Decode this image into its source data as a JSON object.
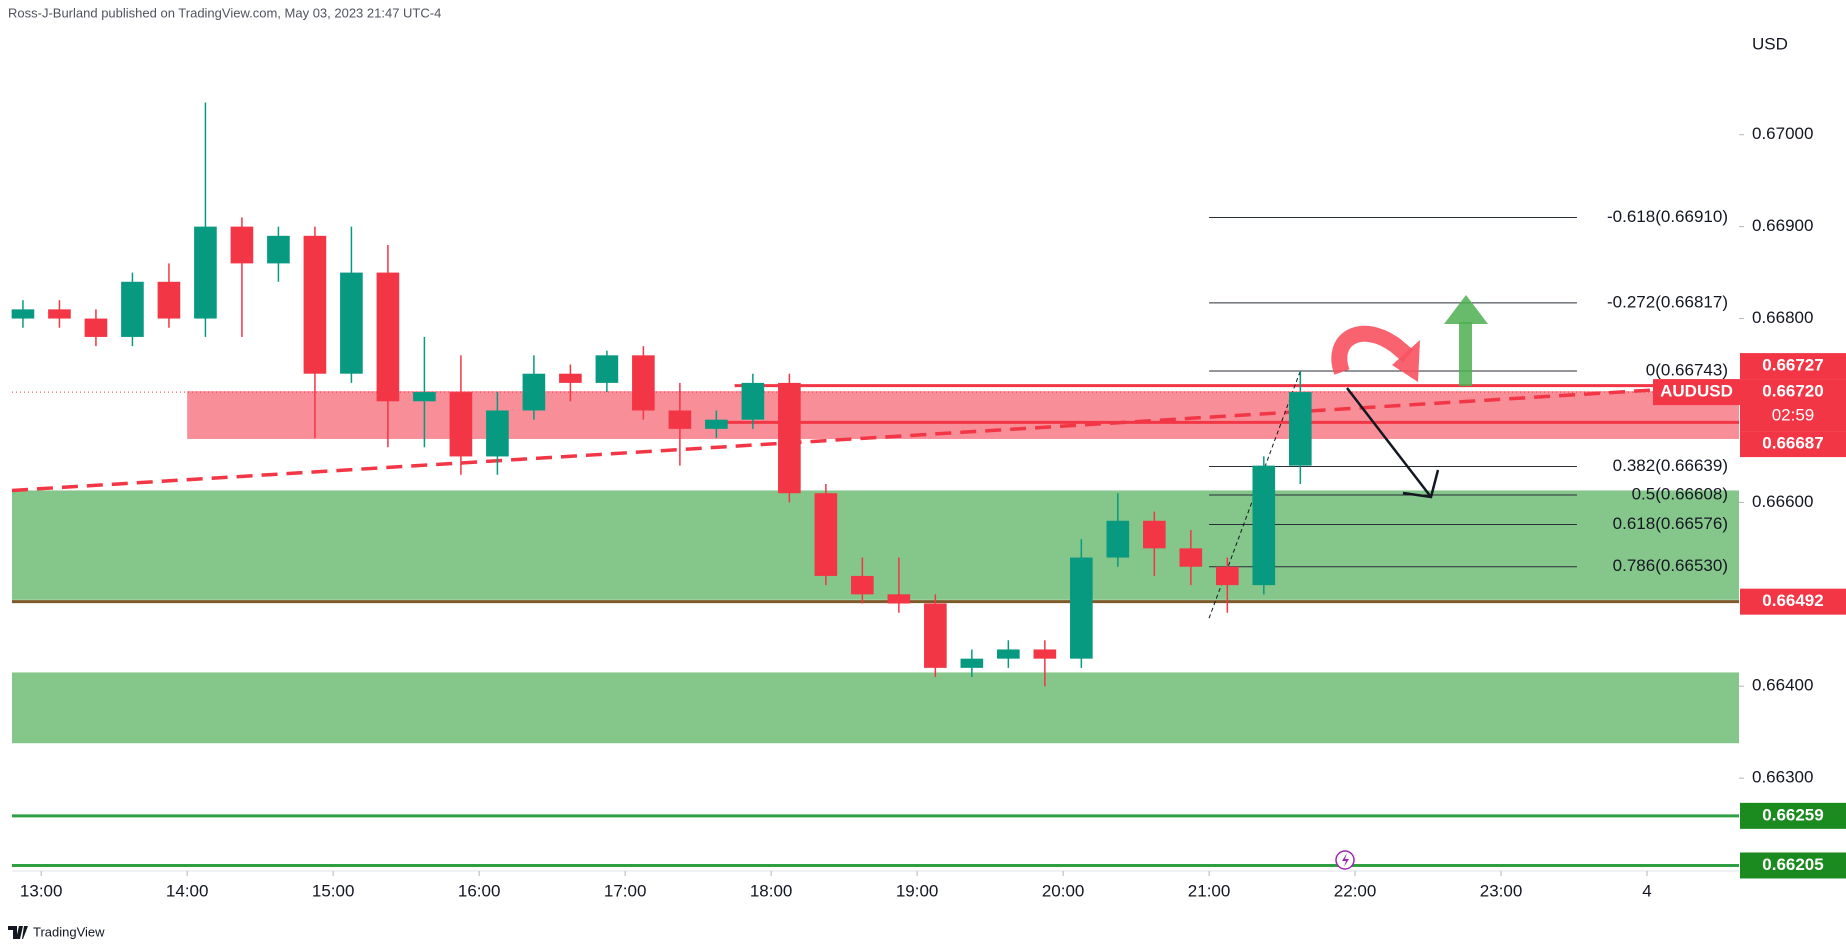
{
  "chart_data": {
    "type": "candlestick",
    "attribution": "Ross-J-Burland published on TradingView.com, May 03, 2023 21:47 UTC-4",
    "currency": "USD",
    "symbol": "AUDUSD",
    "countdown": "02:59",
    "footer": "TradingView",
    "last_price": {
      "value": 0.6672,
      "label": "0.66720"
    },
    "up_color": "#089981",
    "down_color": "#f23645",
    "x": [
      12.875,
      13.125,
      13.375,
      13.625,
      13.875,
      14.125,
      14.375,
      14.625,
      14.875,
      15.125,
      15.375,
      15.625,
      15.875,
      16.125,
      16.375,
      16.625,
      16.875,
      17.125,
      17.375,
      17.625,
      17.875,
      18.125,
      18.375,
      18.625,
      18.875,
      19.125,
      19.375,
      19.625,
      19.875,
      20.125,
      20.375,
      20.625,
      20.875,
      21.125,
      21.375,
      21.625
    ],
    "open": [
      0.668,
      0.6681,
      0.668,
      0.6678,
      0.6684,
      0.668,
      0.669,
      0.6686,
      0.6689,
      0.6674,
      0.6685,
      0.6671,
      0.6672,
      0.6665,
      0.667,
      0.6674,
      0.6673,
      0.6676,
      0.667,
      0.6668,
      0.6669,
      0.6673,
      0.6661,
      0.6652,
      0.665,
      0.6649,
      0.6642,
      0.6643,
      0.6644,
      0.6643,
      0.6654,
      0.6658,
      0.6655,
      0.6653,
      0.6651,
      0.6664
    ],
    "high": [
      0.6682,
      0.6682,
      0.6681,
      0.6685,
      0.6686,
      0.67035,
      0.6691,
      0.669,
      0.669,
      0.669,
      0.6688,
      0.6678,
      0.6676,
      0.6672,
      0.6676,
      0.6675,
      0.66765,
      0.6677,
      0.6673,
      0.667,
      0.6674,
      0.6674,
      0.6662,
      0.6654,
      0.6654,
      0.665,
      0.6644,
      0.6645,
      0.6645,
      0.6656,
      0.6661,
      0.6659,
      0.6657,
      0.6654,
      0.6665,
      0.66743
    ],
    "low": [
      0.6679,
      0.6679,
      0.6677,
      0.6677,
      0.6679,
      0.6678,
      0.6678,
      0.6684,
      0.6667,
      0.6673,
      0.6666,
      0.6666,
      0.6663,
      0.6663,
      0.6669,
      0.6671,
      0.6672,
      0.6669,
      0.6664,
      0.6667,
      0.6668,
      0.666,
      0.6651,
      0.6649,
      0.6648,
      0.6641,
      0.6641,
      0.6642,
      0.664,
      0.6642,
      0.6653,
      0.6652,
      0.6651,
      0.6648,
      0.665,
      0.6662
    ],
    "close": [
      0.6681,
      0.668,
      0.6678,
      0.6684,
      0.668,
      0.669,
      0.6686,
      0.6689,
      0.6674,
      0.6685,
      0.6671,
      0.6672,
      0.6665,
      0.667,
      0.6674,
      0.6673,
      0.6676,
      0.667,
      0.6668,
      0.6669,
      0.6673,
      0.6661,
      0.6652,
      0.665,
      0.6649,
      0.6642,
      0.6643,
      0.6644,
      0.6643,
      0.6654,
      0.6658,
      0.6655,
      0.6653,
      0.6651,
      0.6664,
      0.6672
    ],
    "xlim": [
      12.8,
      24.63
    ],
    "ylim": [
      0.66199,
      0.67115
    ],
    "xticks": [
      {
        "value": 13,
        "label": "13:00"
      },
      {
        "value": 14,
        "label": "14:00"
      },
      {
        "value": 15,
        "label": "15:00"
      },
      {
        "value": 16,
        "label": "16:00"
      },
      {
        "value": 17,
        "label": "17:00"
      },
      {
        "value": 18,
        "label": "18:00"
      },
      {
        "value": 19,
        "label": "19:00"
      },
      {
        "value": 20,
        "label": "20:00"
      },
      {
        "value": 21,
        "label": "21:00"
      },
      {
        "value": 22,
        "label": "22:00"
      },
      {
        "value": 23,
        "label": "23:00"
      },
      {
        "value": 24,
        "label": "4"
      }
    ],
    "yticks": [
      {
        "value": 0.67,
        "label": "0.67000"
      },
      {
        "value": 0.669,
        "label": "0.66900"
      },
      {
        "value": 0.668,
        "label": "0.66800"
      },
      {
        "value": 0.666,
        "label": "0.66600"
      },
      {
        "value": 0.664,
        "label": "0.66400"
      },
      {
        "value": 0.663,
        "label": "0.66300"
      }
    ],
    "zones": [
      {
        "from": 14.0,
        "top": 0.66721,
        "bottom": 0.66669,
        "color": "#f88f98"
      },
      {
        "top": 0.66613,
        "bottom": 0.66494,
        "color": "#85c78a"
      },
      {
        "top": 0.66415,
        "bottom": 0.66338,
        "color": "#85c78a"
      }
    ],
    "trendline": {
      "x": [
        12.8,
        24.63
      ],
      "y": [
        0.66613,
        0.66728
      ],
      "color": "#f23645"
    },
    "fib_swing": {
      "x": [
        21.0,
        21.625
      ],
      "y": [
        0.66474,
        0.66743
      ]
    },
    "levels": [
      {
        "value": 0.66727,
        "from": 17.75,
        "color": "#f23645",
        "label_color": "#f23645"
      },
      {
        "value": 0.66687,
        "from": 17.55,
        "color": "#f23645",
        "label_color": "#f23645"
      },
      {
        "value": 0.66492,
        "color": "#7c5a2a",
        "label_color": "#f23645"
      },
      {
        "value": 0.66259,
        "color": "#2ea043",
        "label_color": "#1b8a1f"
      },
      {
        "value": 0.66205,
        "color": "#2ea043",
        "label_color": "#1b8a1f"
      }
    ],
    "fib": {
      "from": 21.0,
      "to": 23.52,
      "levels": [
        {
          "label": "-0.618(0.66910)",
          "value": 0.6691
        },
        {
          "label": "-0.272(0.66817)",
          "value": 0.66817
        },
        {
          "label": "0(0.66743)",
          "value": 0.66743
        },
        {
          "label": "0.382(0.66639)",
          "value": 0.66639
        },
        {
          "label": "0.5(0.66608)",
          "value": 0.66608
        },
        {
          "label": "0.618(0.66576)",
          "value": 0.66576
        },
        {
          "label": "0.786(0.66530)",
          "value": 0.6653
        }
      ]
    }
  }
}
